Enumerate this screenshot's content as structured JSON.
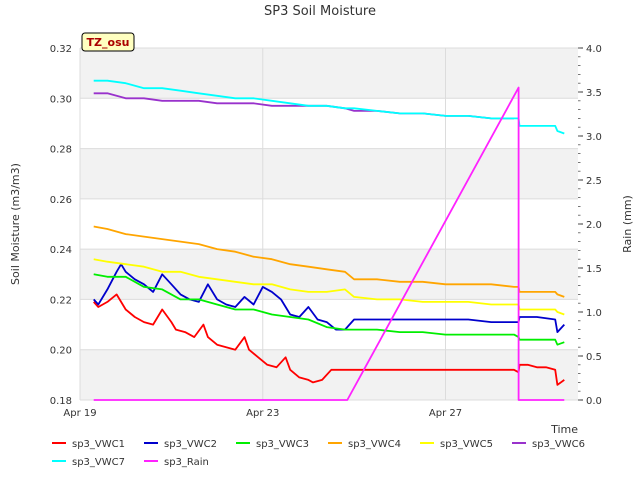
{
  "chart_data": {
    "type": "line",
    "title": "SP3 Soil Moisture",
    "badge": "TZ_osu",
    "xlabel": "Time",
    "ylabel": "Soil Moisture (m3/m3)",
    "y2label": "Rain (mm)",
    "xlim": [
      0,
      10.9
    ],
    "ylim": [
      0.18,
      0.32
    ],
    "y2lim": [
      0,
      4
    ],
    "xticks": [
      {
        "value": 0,
        "label": "Apr 19"
      },
      {
        "value": 4,
        "label": "Apr 23"
      },
      {
        "value": 8,
        "label": "Apr 27"
      }
    ],
    "yticks": [
      "0.18",
      "0.20",
      "0.22",
      "0.24",
      "0.26",
      "0.28",
      "0.30",
      "0.32"
    ],
    "y2ticks": [
      "0.0",
      "0.5",
      "1.0",
      "1.5",
      "2.0",
      "2.5",
      "3.0",
      "3.5",
      "4.0"
    ],
    "grid": true,
    "legend_position": "bottom",
    "series": [
      {
        "name": "sp3_VWC1",
        "color": "#ff0000",
        "axis": "left",
        "x": [
          0.3,
          0.4,
          0.6,
          0.8,
          1.0,
          1.2,
          1.4,
          1.6,
          1.8,
          2.0,
          2.1,
          2.3,
          2.5,
          2.7,
          2.8,
          3.0,
          3.2,
          3.4,
          3.6,
          3.7,
          3.9,
          4.1,
          4.3,
          4.5,
          4.6,
          4.8,
          5.0,
          5.1,
          5.3,
          5.5,
          5.6,
          5.8,
          6.0,
          6.2,
          6.4,
          6.6,
          6.8,
          7.0,
          7.5,
          8.0,
          8.5,
          9.0,
          9.5,
          9.6,
          9.62,
          9.8,
          10.0,
          10.2,
          10.4,
          10.45,
          10.6
        ],
        "y": [
          0.219,
          0.217,
          0.219,
          0.222,
          0.216,
          0.213,
          0.211,
          0.21,
          0.216,
          0.211,
          0.208,
          0.207,
          0.205,
          0.21,
          0.205,
          0.202,
          0.201,
          0.2,
          0.205,
          0.2,
          0.197,
          0.194,
          0.193,
          0.197,
          0.192,
          0.189,
          0.188,
          0.187,
          0.188,
          0.192,
          0.192,
          0.192,
          0.192,
          0.192,
          0.192,
          0.192,
          0.192,
          0.192,
          0.192,
          0.192,
          0.192,
          0.192,
          0.192,
          0.191,
          0.194,
          0.194,
          0.193,
          0.193,
          0.192,
          0.186,
          0.188
        ]
      },
      {
        "name": "sp3_VWC2",
        "color": "#0000cc",
        "axis": "left",
        "x": [
          0.3,
          0.4,
          0.6,
          0.8,
          0.9,
          1.0,
          1.2,
          1.4,
          1.6,
          1.8,
          2.0,
          2.2,
          2.4,
          2.6,
          2.8,
          3.0,
          3.2,
          3.4,
          3.6,
          3.8,
          4.0,
          4.2,
          4.4,
          4.6,
          4.8,
          5.0,
          5.2,
          5.4,
          5.6,
          5.8,
          6.0,
          6.5,
          7.0,
          7.5,
          8.0,
          8.5,
          9.0,
          9.5,
          9.6,
          9.62,
          10.0,
          10.4,
          10.45,
          10.6
        ],
        "y": [
          0.22,
          0.218,
          0.224,
          0.231,
          0.234,
          0.231,
          0.228,
          0.226,
          0.223,
          0.23,
          0.226,
          0.222,
          0.22,
          0.219,
          0.226,
          0.22,
          0.218,
          0.217,
          0.221,
          0.218,
          0.225,
          0.223,
          0.22,
          0.214,
          0.213,
          0.217,
          0.212,
          0.211,
          0.208,
          0.208,
          0.212,
          0.212,
          0.212,
          0.212,
          0.212,
          0.212,
          0.211,
          0.211,
          0.211,
          0.213,
          0.213,
          0.212,
          0.207,
          0.21
        ]
      },
      {
        "name": "sp3_VWC3",
        "color": "#00ee00",
        "axis": "left",
        "x": [
          0.3,
          0.6,
          1.0,
          1.4,
          1.8,
          2.2,
          2.6,
          3.0,
          3.4,
          3.8,
          4.2,
          4.6,
          5.0,
          5.4,
          5.8,
          6.0,
          6.5,
          7.0,
          7.5,
          8.0,
          8.5,
          9.0,
          9.5,
          9.6,
          9.62,
          10.0,
          10.4,
          10.45,
          10.6
        ],
        "y": [
          0.23,
          0.229,
          0.229,
          0.225,
          0.224,
          0.22,
          0.22,
          0.218,
          0.216,
          0.216,
          0.214,
          0.213,
          0.212,
          0.209,
          0.208,
          0.208,
          0.208,
          0.207,
          0.207,
          0.206,
          0.206,
          0.206,
          0.206,
          0.205,
          0.204,
          0.204,
          0.204,
          0.202,
          0.203
        ]
      },
      {
        "name": "sp3_VWC4",
        "color": "#ffa500",
        "axis": "left",
        "x": [
          0.3,
          0.6,
          1.0,
          1.4,
          1.8,
          2.2,
          2.6,
          3.0,
          3.4,
          3.8,
          4.2,
          4.6,
          5.0,
          5.4,
          5.8,
          6.0,
          6.5,
          7.0,
          7.5,
          8.0,
          8.5,
          9.0,
          9.5,
          9.6,
          9.62,
          10.0,
          10.4,
          10.45,
          10.6
        ],
        "y": [
          0.249,
          0.248,
          0.246,
          0.245,
          0.244,
          0.243,
          0.242,
          0.24,
          0.239,
          0.237,
          0.236,
          0.234,
          0.233,
          0.232,
          0.231,
          0.228,
          0.228,
          0.227,
          0.227,
          0.226,
          0.226,
          0.226,
          0.225,
          0.225,
          0.223,
          0.223,
          0.223,
          0.222,
          0.221
        ]
      },
      {
        "name": "sp3_VWC5",
        "color": "#ffff00",
        "axis": "left",
        "x": [
          0.3,
          0.6,
          1.0,
          1.4,
          1.8,
          2.2,
          2.6,
          3.0,
          3.4,
          3.8,
          4.2,
          4.6,
          5.0,
          5.4,
          5.8,
          6.0,
          6.5,
          7.0,
          7.5,
          8.0,
          8.5,
          9.0,
          9.5,
          9.6,
          9.62,
          10.0,
          10.4,
          10.45,
          10.6
        ],
        "y": [
          0.236,
          0.235,
          0.234,
          0.233,
          0.231,
          0.231,
          0.229,
          0.228,
          0.227,
          0.226,
          0.226,
          0.224,
          0.223,
          0.223,
          0.224,
          0.221,
          0.22,
          0.22,
          0.219,
          0.219,
          0.219,
          0.218,
          0.218,
          0.218,
          0.216,
          0.216,
          0.216,
          0.215,
          0.214
        ]
      },
      {
        "name": "sp3_VWC6",
        "color": "#9932cc",
        "axis": "left",
        "x": [
          0.3,
          0.6,
          1.0,
          1.4,
          1.8,
          2.2,
          2.6,
          3.0,
          3.4,
          3.8,
          4.2,
          4.6,
          5.0,
          5.4,
          5.8,
          6.0,
          6.5,
          7.0,
          7.5,
          8.0,
          8.5,
          9.0,
          9.5
        ],
        "y": [
          0.302,
          0.302,
          0.3,
          0.3,
          0.299,
          0.299,
          0.299,
          0.298,
          0.298,
          0.298,
          0.297,
          0.297,
          0.297,
          0.297,
          0.296,
          0.295,
          0.295,
          0.294,
          0.294,
          0.293,
          0.293,
          0.292,
          0.292
        ]
      },
      {
        "name": "sp3_VWC7",
        "color": "#00ffff",
        "axis": "left",
        "x": [
          0.3,
          0.6,
          1.0,
          1.4,
          1.8,
          2.2,
          2.6,
          3.0,
          3.4,
          3.8,
          4.2,
          4.6,
          5.0,
          5.4,
          5.8,
          6.0,
          6.5,
          7.0,
          7.5,
          8.0,
          8.5,
          9.0,
          9.5,
          9.6,
          9.62,
          10.0,
          10.4,
          10.45,
          10.6
        ],
        "y": [
          0.307,
          0.307,
          0.306,
          0.304,
          0.304,
          0.303,
          0.302,
          0.301,
          0.3,
          0.3,
          0.299,
          0.298,
          0.297,
          0.297,
          0.296,
          0.296,
          0.295,
          0.294,
          0.294,
          0.293,
          0.293,
          0.292,
          0.292,
          0.292,
          0.289,
          0.289,
          0.289,
          0.287,
          0.286
        ]
      },
      {
        "name": "sp3_Rain",
        "color": "#ff22ff",
        "axis": "right",
        "x": [
          0.3,
          5.85,
          9.6,
          9.6,
          10.6
        ],
        "y": [
          0.0,
          0.0,
          3.55,
          0.0,
          0.0
        ]
      }
    ]
  }
}
